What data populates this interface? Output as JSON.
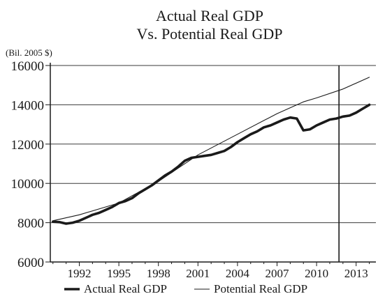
{
  "chart_data": {
    "type": "line",
    "title": "Actual Real GDP",
    "subtitle": "Vs. Potential Real GDP",
    "ylabel": "(Bil. 2005 $)",
    "xlabel": "",
    "xlim": [
      1989.8,
      2014.5
    ],
    "ylim": [
      6000,
      16000
    ],
    "y_ticks": [
      "6000",
      "8000",
      "10000",
      "12000",
      "14000",
      "16000"
    ],
    "y_tick_values": [
      6000,
      8000,
      10000,
      12000,
      14000,
      16000
    ],
    "x_ticks": [
      "1992",
      "1995",
      "1998",
      "2001",
      "2004",
      "2007",
      "2010",
      "2013"
    ],
    "x_tick_values": [
      1992,
      1995,
      1998,
      2001,
      2004,
      2007,
      2010,
      2013
    ],
    "grid": "horizontal",
    "legend_position": "bottom",
    "vertical_marker_x": 2011.7,
    "series": [
      {
        "name": "Actual Real GDP",
        "style": "thick",
        "color": "#1a1a1a",
        "x": [
          1990.0,
          1990.5,
          1991.0,
          1991.5,
          1992.0,
          1992.5,
          1993.0,
          1993.5,
          1994.0,
          1994.5,
          1995.0,
          1995.5,
          1996.0,
          1996.5,
          1997.0,
          1997.5,
          1998.0,
          1998.5,
          1999.0,
          1999.5,
          2000.0,
          2000.5,
          2001.0,
          2001.5,
          2002.0,
          2002.5,
          2003.0,
          2003.5,
          2004.0,
          2004.5,
          2005.0,
          2005.5,
          2006.0,
          2006.5,
          2007.0,
          2007.5,
          2008.0,
          2008.5,
          2009.0,
          2009.5,
          2010.0,
          2010.5,
          2011.0,
          2011.5,
          2012.0,
          2012.5,
          2013.0,
          2013.5,
          2014.0
        ],
        "values": [
          8050,
          8030,
          7950,
          8000,
          8100,
          8250,
          8400,
          8500,
          8650,
          8800,
          9000,
          9100,
          9250,
          9500,
          9700,
          9900,
          10150,
          10400,
          10600,
          10850,
          11150,
          11300,
          11350,
          11400,
          11450,
          11550,
          11650,
          11850,
          12100,
          12300,
          12500,
          12650,
          12850,
          12950,
          13100,
          13250,
          13350,
          13300,
          12700,
          12750,
          12950,
          13100,
          13250,
          13300,
          13400,
          13450,
          13600,
          13800,
          14000
        ]
      },
      {
        "name": "Potential Real GDP",
        "style": "thin",
        "color": "#1a1a1a",
        "x": [
          1990.0,
          1992.0,
          1995.0,
          1998.0,
          2001.0,
          2004.0,
          2007.0,
          2009.0,
          2010.0,
          2012.0,
          2014.0
        ],
        "values": [
          8100,
          8400,
          9000,
          10100,
          11450,
          12500,
          13550,
          14150,
          14350,
          14800,
          15400
        ]
      }
    ]
  }
}
